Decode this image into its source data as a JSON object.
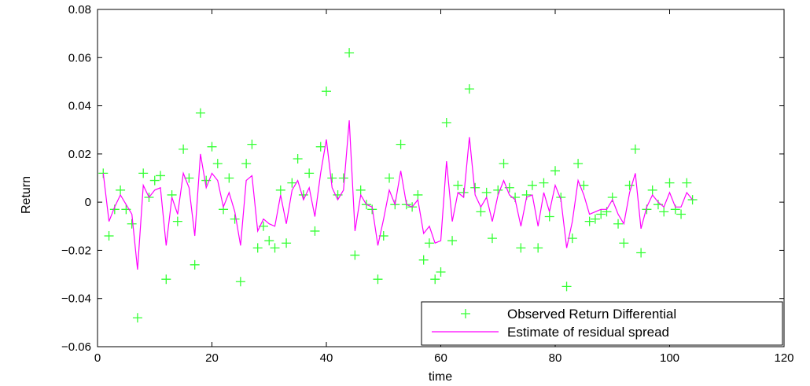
{
  "chart_data": {
    "type": "line",
    "title": "",
    "xlabel": "time",
    "ylabel": "Return",
    "xlim": [
      0,
      120
    ],
    "ylim": [
      -0.06,
      0.08
    ],
    "grid": false,
    "legend_position": "bottom-right",
    "x_ticks": [
      0,
      20,
      40,
      60,
      80,
      100,
      120
    ],
    "x_tick_labels": [
      "0",
      "20",
      "40",
      "60",
      "80",
      "100",
      "120"
    ],
    "y_ticks": [
      -0.06,
      -0.04,
      -0.02,
      0,
      0.02,
      0.04,
      0.06,
      0.08
    ],
    "y_tick_labels": [
      "−0.06",
      "−0.04",
      "−0.02",
      "0",
      "0.02",
      "0.04",
      "0.06",
      "0.08"
    ],
    "series": [
      {
        "name": "Observed Return Differential",
        "kind": "scatter",
        "marker": "+",
        "color": "#33ff33",
        "x": [
          1,
          2,
          3,
          4,
          5,
          6,
          7,
          8,
          9,
          10,
          11,
          12,
          13,
          14,
          15,
          16,
          17,
          18,
          19,
          20,
          21,
          22,
          23,
          24,
          25,
          26,
          27,
          28,
          29,
          30,
          31,
          32,
          33,
          34,
          35,
          36,
          37,
          38,
          39,
          40,
          41,
          42,
          43,
          44,
          45,
          46,
          47,
          48,
          49,
          50,
          51,
          52,
          53,
          54,
          55,
          56,
          57,
          58,
          59,
          60,
          61,
          62,
          63,
          64,
          65,
          66,
          67,
          68,
          69,
          70,
          71,
          72,
          73,
          74,
          75,
          76,
          77,
          78,
          79,
          80,
          81,
          82,
          83,
          84,
          85,
          86,
          87,
          88,
          89,
          90,
          91,
          92,
          93,
          94,
          95,
          96,
          97,
          98,
          99,
          100,
          101,
          102,
          103,
          104
        ],
        "y": [
          0.012,
          -0.014,
          -0.003,
          0.005,
          -0.003,
          -0.009,
          -0.048,
          0.012,
          0.002,
          0.009,
          0.011,
          -0.032,
          0.003,
          -0.008,
          0.022,
          0.01,
          -0.026,
          0.037,
          0.009,
          0.023,
          0.016,
          -0.003,
          0.01,
          -0.007,
          -0.033,
          0.016,
          0.024,
          -0.019,
          -0.01,
          -0.016,
          -0.019,
          0.005,
          -0.017,
          0.008,
          0.018,
          0.003,
          0.012,
          -0.012,
          0.023,
          0.046,
          0.01,
          0.003,
          0.01,
          0.062,
          -0.022,
          0.005,
          -0.001,
          -0.003,
          -0.032,
          -0.014,
          0.01,
          -0.001,
          0.024,
          -0.001,
          -0.002,
          0.003,
          -0.024,
          -0.017,
          -0.032,
          -0.029,
          0.033,
          -0.016,
          0.007,
          0.004,
          0.047,
          0.006,
          -0.004,
          0.004,
          -0.015,
          0.005,
          0.016,
          0.006,
          0.002,
          -0.019,
          0.003,
          0.007,
          -0.019,
          0.008,
          -0.006,
          0.013,
          0.002,
          -0.035,
          -0.015,
          0.016,
          0.007,
          -0.008,
          -0.007,
          -0.005,
          -0.004,
          0.002,
          -0.009,
          -0.017,
          0.007,
          0.022,
          -0.021,
          -0.003,
          0.005,
          -0.001,
          -0.004,
          0.008,
          -0.003,
          -0.005,
          0.008,
          0.001
        ]
      },
      {
        "name": "Estimate of residual spread",
        "kind": "line",
        "color": "#ff00ff",
        "x": [
          1,
          2,
          3,
          4,
          5,
          6,
          7,
          8,
          9,
          10,
          11,
          12,
          13,
          14,
          15,
          16,
          17,
          18,
          19,
          20,
          21,
          22,
          23,
          24,
          25,
          26,
          27,
          28,
          29,
          30,
          31,
          32,
          33,
          34,
          35,
          36,
          37,
          38,
          39,
          40,
          41,
          42,
          43,
          44,
          45,
          46,
          47,
          48,
          49,
          50,
          51,
          52,
          53,
          54,
          55,
          56,
          57,
          58,
          59,
          60,
          61,
          62,
          63,
          64,
          65,
          66,
          67,
          68,
          69,
          70,
          71,
          72,
          73,
          74,
          75,
          76,
          77,
          78,
          79,
          80,
          81,
          82,
          83,
          84,
          85,
          86,
          87,
          88,
          89,
          90,
          91,
          92,
          93,
          94,
          95,
          96,
          97,
          98,
          99,
          100,
          101,
          102,
          103,
          104
        ],
        "y": [
          0.012,
          -0.008,
          -0.002,
          0.003,
          -0.001,
          -0.005,
          -0.028,
          0.007,
          0.002,
          0.005,
          0.006,
          -0.018,
          0.002,
          -0.005,
          0.012,
          0.006,
          -0.014,
          0.02,
          0.006,
          0.012,
          0.009,
          -0.002,
          0.004,
          -0.004,
          -0.018,
          0.009,
          0.011,
          -0.012,
          -0.007,
          -0.009,
          -0.01,
          0.003,
          -0.009,
          0.005,
          0.009,
          0.001,
          0.006,
          -0.006,
          0.012,
          0.026,
          0.006,
          0.001,
          0.005,
          0.034,
          -0.012,
          0.003,
          -0.001,
          -0.002,
          -0.018,
          -0.007,
          0.005,
          -0.001,
          0.013,
          -0.001,
          -0.002,
          0.001,
          -0.013,
          -0.01,
          -0.017,
          -0.016,
          0.017,
          -0.008,
          0.004,
          0.002,
          0.027,
          0.003,
          -0.002,
          0.002,
          -0.008,
          0.003,
          0.009,
          0.003,
          0.001,
          -0.01,
          0.002,
          0.003,
          -0.01,
          0.004,
          -0.004,
          0.007,
          0.001,
          -0.019,
          -0.008,
          0.009,
          0.003,
          -0.005,
          -0.004,
          -0.003,
          -0.003,
          0.001,
          -0.005,
          -0.009,
          0.004,
          0.012,
          -0.011,
          -0.002,
          0.003,
          0.0,
          -0.002,
          0.004,
          -0.002,
          -0.002,
          0.004,
          0.001
        ]
      }
    ]
  }
}
